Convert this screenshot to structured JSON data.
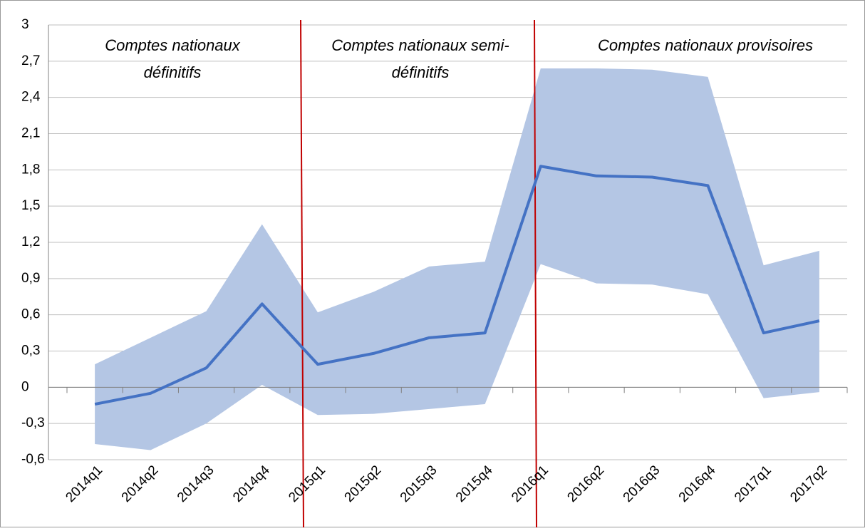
{
  "chart_data": {
    "type": "line",
    "categories": [
      "2014q1",
      "2014q2",
      "2014q3",
      "2014q4",
      "2015q1",
      "2015q2",
      "2015q3",
      "2015q4",
      "2016q1",
      "2016q2",
      "2016q3",
      "2016q4",
      "2017q1",
      "2017q2"
    ],
    "series": [
      {
        "color": "#4472c4",
        "values": [
          -0.14,
          -0.05,
          0.16,
          0.69,
          0.19,
          0.28,
          0.41,
          0.45,
          1.83,
          1.75,
          1.74,
          1.67,
          0.45,
          0.55
        ]
      }
    ],
    "band": {
      "color": "#b4c6e4",
      "upper": [
        0.19,
        0.41,
        0.63,
        1.35,
        0.62,
        0.79,
        1.0,
        1.04,
        2.64,
        2.64,
        2.63,
        2.57,
        1.01,
        1.13
      ],
      "lower": [
        -0.47,
        -0.52,
        -0.3,
        0.02,
        -0.23,
        -0.22,
        -0.18,
        -0.14,
        1.02,
        0.86,
        0.85,
        0.77,
        -0.09,
        -0.04
      ]
    },
    "annotations": [
      [
        "Comptes nationaux",
        "définitifs"
      ],
      [
        "Comptes nationaux semi-",
        "définitifs"
      ],
      [
        "Comptes nationaux provisoires"
      ]
    ],
    "ylim": [
      -0.6,
      3
    ],
    "yticks": [
      {
        "value": -0.6,
        "label": "-0,6"
      },
      {
        "value": -0.3,
        "label": "-0,3"
      },
      0,
      {
        "value": 0.3,
        "label": "0,3"
      },
      {
        "value": 0.6,
        "label": "0,6"
      },
      {
        "value": 0.9,
        "label": "0,9"
      },
      {
        "value": 1.2,
        "label": "1,2"
      },
      {
        "value": 1.5,
        "label": "1,5"
      },
      {
        "value": 1.8,
        "label": "1,8"
      },
      {
        "value": 2.1,
        "label": "2,1"
      },
      {
        "value": 2.4,
        "label": "2,4"
      },
      {
        "value": 2.7,
        "label": "2,7"
      },
      3
    ],
    "grid": true
  }
}
